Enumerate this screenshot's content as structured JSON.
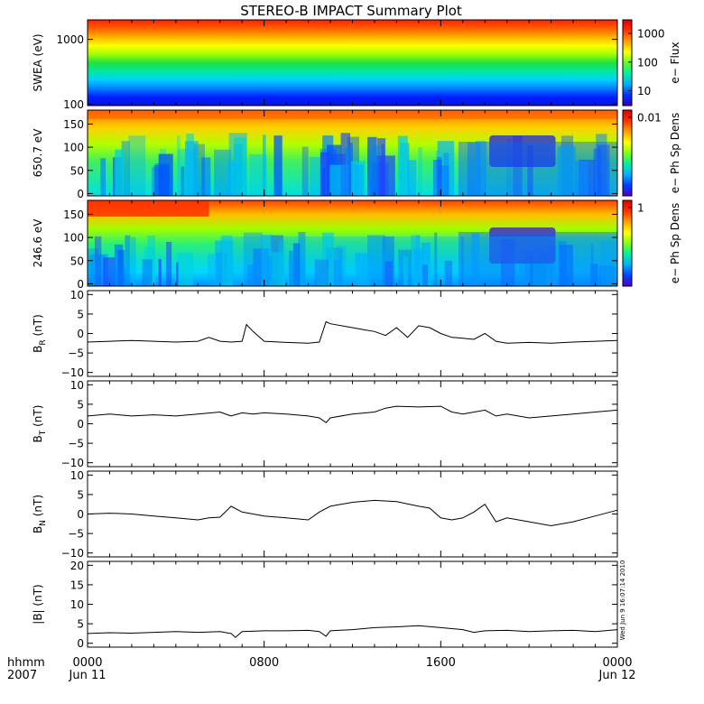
{
  "title": "STEREO-B IMPACT Summary Plot",
  "stamp": "Wed Jun  9 16:07:14 2010",
  "time_axis": {
    "corner_top": "hhmm",
    "corner_bottom": "2007",
    "ticks": [
      {
        "hours": 0,
        "label": "0000",
        "date": "Jun 11"
      },
      {
        "hours": 8,
        "label": "0800",
        "date": ""
      },
      {
        "hours": 16,
        "label": "1600",
        "date": ""
      },
      {
        "hours": 24,
        "label": "0000",
        "date": "Jun 12"
      }
    ],
    "range_hours": [
      0,
      24
    ]
  },
  "chart_data": [
    {
      "type": "heatmap",
      "ylabel": "SWEA (eV)",
      "yscale": "log",
      "ylim": [
        95,
        2000
      ],
      "yticks": [
        {
          "v": 100,
          "label": "100"
        },
        {
          "v": 1000,
          "label": "1000"
        }
      ],
      "colorbar": {
        "label": "e− Flux",
        "scale": "log",
        "ticks": [
          {
            "v": 10,
            "label": "10"
          },
          {
            "v": 100,
            "label": "100"
          },
          {
            "v": 1000,
            "label": "1000"
          }
        ],
        "range": [
          3,
          3000
        ]
      }
    },
    {
      "type": "heatmap",
      "ylabel": "650.7 eV",
      "ylim": [
        -5,
        180
      ],
      "yticks": [
        {
          "v": 0,
          "label": "0"
        },
        {
          "v": 50,
          "label": "50"
        },
        {
          "v": 100,
          "label": "100"
        },
        {
          "v": 150,
          "label": "150"
        }
      ],
      "colorbar": {
        "label": "e− Ph Sp Dens",
        "ticks": [
          {
            "v": 0.01,
            "label": "0.01"
          }
        ]
      }
    },
    {
      "type": "heatmap",
      "ylabel": "246.6 eV",
      "ylim": [
        -5,
        180
      ],
      "yticks": [
        {
          "v": 0,
          "label": "0"
        },
        {
          "v": 50,
          "label": "50"
        },
        {
          "v": 100,
          "label": "100"
        },
        {
          "v": 150,
          "label": "150"
        }
      ],
      "colorbar": {
        "label": "e− Ph Sp Dens",
        "ticks": [
          {
            "v": 1,
            "label": "1"
          }
        ]
      }
    },
    {
      "type": "line",
      "ylabel": "B",
      "ylabel_sub": "R",
      "ylabel_unit": " (nT)",
      "ylim": [
        -11,
        11
      ],
      "yticks": [
        {
          "v": -10,
          "label": "−10"
        },
        {
          "v": -5,
          "label": "−5"
        },
        {
          "v": 0,
          "label": "0"
        },
        {
          "v": 5,
          "label": "5"
        },
        {
          "v": 10,
          "label": "10"
        }
      ],
      "x": [
        0,
        1,
        2,
        3,
        4,
        5,
        5.5,
        6,
        6.5,
        7,
        7.2,
        7.5,
        8,
        9,
        10,
        10.5,
        10.8,
        11,
        12,
        12.5,
        13,
        13.5,
        14,
        14.5,
        15,
        15.5,
        16,
        16.5,
        17,
        17.5,
        18,
        18.5,
        19,
        20,
        21,
        22,
        23,
        24
      ],
      "y": [
        -2.2,
        -2.0,
        -1.8,
        -2.0,
        -2.2,
        -2.0,
        -1.0,
        -2.0,
        -2.2,
        -2.0,
        2.3,
        0.5,
        -2.0,
        -2.3,
        -2.5,
        -2.2,
        3.0,
        2.5,
        1.5,
        1.0,
        0.5,
        -0.5,
        1.5,
        -1.0,
        2.0,
        1.5,
        0,
        -1.0,
        -1.2,
        -1.5,
        0,
        -2.0,
        -2.5,
        -2.3,
        -2.5,
        -2.2,
        -2.0,
        -1.8
      ]
    },
    {
      "type": "line",
      "ylabel": "B",
      "ylabel_sub": "T",
      "ylabel_unit": " (nT)",
      "ylim": [
        -11,
        11
      ],
      "yticks": [
        {
          "v": -10,
          "label": "−10"
        },
        {
          "v": -5,
          "label": "−5"
        },
        {
          "v": 0,
          "label": "0"
        },
        {
          "v": 5,
          "label": "5"
        },
        {
          "v": 10,
          "label": "10"
        }
      ],
      "x": [
        0,
        1,
        2,
        3,
        4,
        5,
        6,
        6.5,
        7,
        7.5,
        8,
        9,
        10,
        10.5,
        10.8,
        11,
        12,
        13,
        13.5,
        14,
        15,
        16,
        16.5,
        17,
        18,
        18.5,
        19,
        20,
        21,
        22,
        23,
        24
      ],
      "y": [
        2.0,
        2.5,
        2.0,
        2.3,
        2.0,
        2.5,
        3.0,
        2.0,
        2.8,
        2.5,
        2.8,
        2.5,
        2.0,
        1.5,
        0.3,
        1.5,
        2.5,
        3.0,
        4.0,
        4.5,
        4.3,
        4.5,
        3.0,
        2.5,
        3.5,
        2.0,
        2.5,
        1.5,
        2.0,
        2.5,
        3.0,
        3.5
      ]
    },
    {
      "type": "line",
      "ylabel": "B",
      "ylabel_sub": "N",
      "ylabel_unit": " (nT)",
      "ylim": [
        -11,
        11
      ],
      "yticks": [
        {
          "v": -10,
          "label": "−10"
        },
        {
          "v": -5,
          "label": "−5"
        },
        {
          "v": 0,
          "label": "0"
        },
        {
          "v": 5,
          "label": "5"
        },
        {
          "v": 10,
          "label": "10"
        }
      ],
      "x": [
        0,
        1,
        2,
        3,
        4,
        5,
        5.5,
        6,
        6.5,
        7,
        7.5,
        8,
        9,
        10,
        10.5,
        11,
        12,
        13,
        14,
        15,
        15.5,
        16,
        16.5,
        17,
        17.5,
        18,
        18.5,
        19,
        20,
        21,
        22,
        23,
        24
      ],
      "y": [
        0,
        0.2,
        0,
        -0.5,
        -1.0,
        -1.5,
        -1.0,
        -0.8,
        2.0,
        0.5,
        0,
        -0.5,
        -1.0,
        -1.5,
        0.5,
        2.0,
        3.0,
        3.5,
        3.2,
        2.0,
        1.5,
        -1.0,
        -1.5,
        -1.0,
        0.5,
        2.5,
        -2.0,
        -1.0,
        -2.0,
        -3.0,
        -2.0,
        -0.5,
        1.0
      ]
    },
    {
      "type": "line",
      "ylabel": "|B| (nT)",
      "ylim": [
        -1,
        21
      ],
      "yticks": [
        {
          "v": 0,
          "label": "0"
        },
        {
          "v": 5,
          "label": "5"
        },
        {
          "v": 10,
          "label": "10"
        },
        {
          "v": 15,
          "label": "15"
        },
        {
          "v": 20,
          "label": "20"
        }
      ],
      "x": [
        0,
        1,
        2,
        3,
        4,
        5,
        6,
        6.5,
        6.7,
        7,
        8,
        9,
        10,
        10.5,
        10.8,
        11,
        12,
        13,
        14,
        15,
        16,
        17,
        17.5,
        18,
        19,
        20,
        21,
        22,
        23,
        24
      ],
      "y": [
        2.5,
        2.7,
        2.6,
        2.8,
        3.0,
        2.8,
        3.0,
        2.5,
        1.5,
        3.0,
        3.2,
        3.2,
        3.3,
        3.0,
        1.8,
        3.2,
        3.5,
        4.0,
        4.2,
        4.5,
        4.0,
        3.5,
        2.8,
        3.2,
        3.3,
        3.0,
        3.2,
        3.3,
        3.0,
        3.5
      ]
    }
  ]
}
